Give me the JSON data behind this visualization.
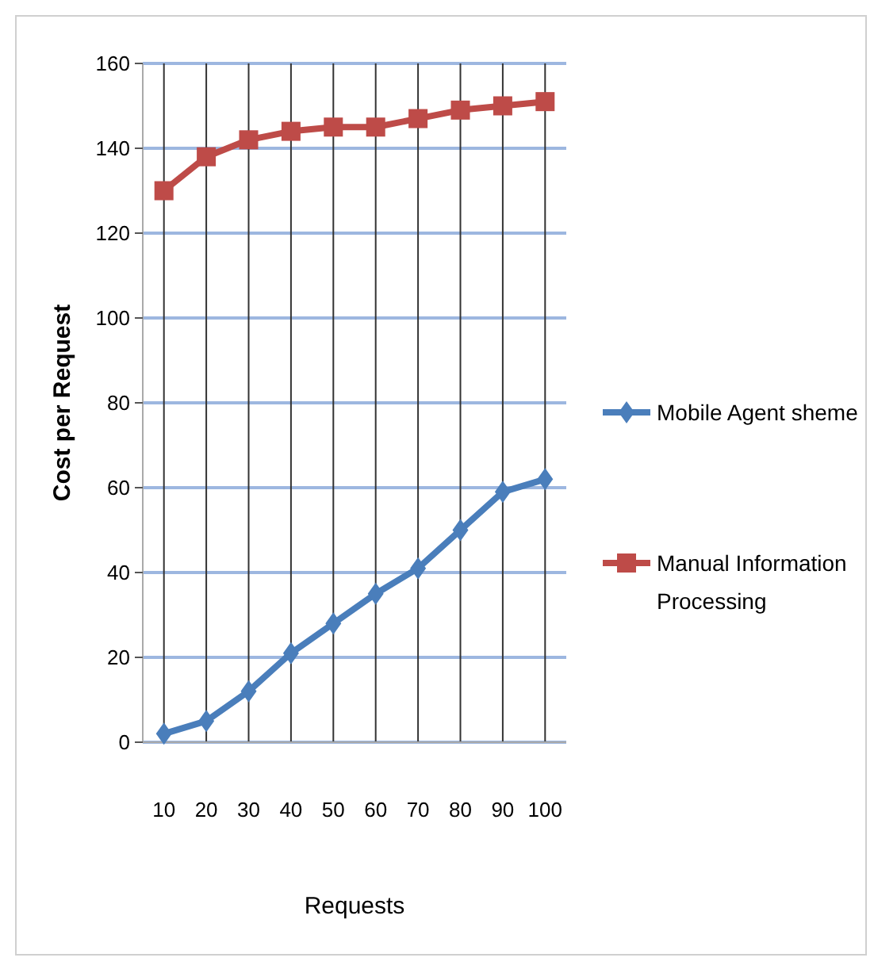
{
  "chart_data": {
    "type": "line",
    "xlabel": "Requests",
    "ylabel": "Cost per Request",
    "categories": [
      "10",
      "20",
      "30",
      "40",
      "50",
      "60",
      "70",
      "80",
      "90",
      "100"
    ],
    "series": [
      {
        "name": "Mobile Agent sheme",
        "color": "#4a7ebb",
        "marker": "diamond",
        "values": [
          2,
          5,
          12,
          21,
          28,
          35,
          41,
          50,
          59,
          62
        ]
      },
      {
        "name": "Manual Information Processing",
        "color": "#be4b48",
        "marker": "square",
        "values": [
          130,
          138,
          142,
          144,
          145,
          145,
          147,
          149,
          150,
          151
        ]
      }
    ],
    "ylim": [
      0,
      160
    ],
    "yticks": [
      0,
      20,
      40,
      60,
      80,
      100,
      120,
      140,
      160
    ],
    "grid": true,
    "legend": "right"
  }
}
